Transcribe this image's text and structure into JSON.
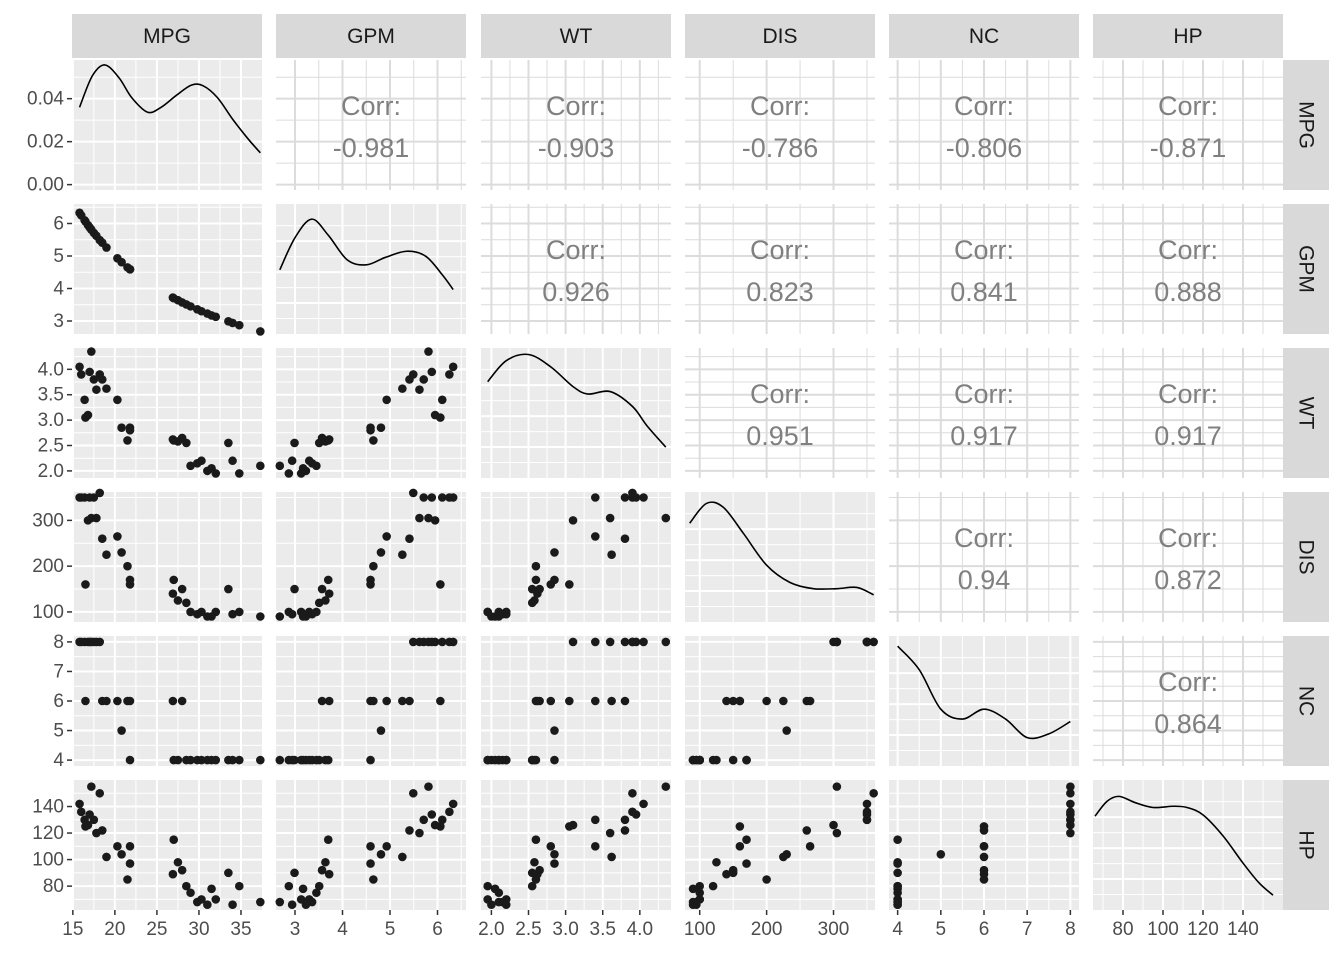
{
  "chart_data": {
    "type": "scatter-matrix",
    "title": "",
    "variables": [
      "MPG",
      "GPM",
      "WT",
      "DIS",
      "NC",
      "HP"
    ],
    "corr_label": "Corr:",
    "correlations": [
      {
        "row": "MPG",
        "col": "GPM",
        "value": "-0.981"
      },
      {
        "row": "MPG",
        "col": "WT",
        "value": "-0.903"
      },
      {
        "row": "MPG",
        "col": "DIS",
        "value": "-0.786"
      },
      {
        "row": "MPG",
        "col": "NC",
        "value": "-0.806"
      },
      {
        "row": "MPG",
        "col": "HP",
        "value": "-0.871"
      },
      {
        "row": "GPM",
        "col": "WT",
        "value": "0.926"
      },
      {
        "row": "GPM",
        "col": "DIS",
        "value": "0.823"
      },
      {
        "row": "GPM",
        "col": "NC",
        "value": "0.841"
      },
      {
        "row": "GPM",
        "col": "HP",
        "value": "0.888"
      },
      {
        "row": "WT",
        "col": "DIS",
        "value": "0.951"
      },
      {
        "row": "WT",
        "col": "NC",
        "value": "0.917"
      },
      {
        "row": "WT",
        "col": "HP",
        "value": "0.917"
      },
      {
        "row": "DIS",
        "col": "NC",
        "value": "0.94"
      },
      {
        "row": "DIS",
        "col": "HP",
        "value": "0.872"
      },
      {
        "row": "NC",
        "col": "HP",
        "value": "0.864"
      }
    ],
    "x_axes": {
      "MPG": {
        "range": [
          14.9,
          37.5
        ],
        "ticks": [
          15,
          20,
          25,
          30,
          35
        ],
        "labels": [
          "15",
          "20",
          "25",
          "30",
          "35"
        ]
      },
      "GPM": {
        "range": [
          2.6,
          6.6
        ],
        "ticks": [
          3,
          4,
          5,
          6
        ],
        "labels": [
          "3",
          "4",
          "5",
          "6"
        ]
      },
      "WT": {
        "range": [
          1.86,
          4.42
        ],
        "ticks": [
          2.0,
          2.5,
          3.0,
          3.5,
          4.0
        ],
        "labels": [
          "2.0",
          "2.5",
          "3.0",
          "3.5",
          "4.0"
        ]
      },
      "DIS": {
        "range": [
          78,
          362
        ],
        "ticks": [
          100,
          200,
          300
        ],
        "labels": [
          "100",
          "200",
          "300"
        ]
      },
      "NC": {
        "range": [
          3.8,
          8.2
        ],
        "ticks": [
          4,
          5,
          6,
          7,
          8
        ],
        "labels": [
          "4",
          "5",
          "6",
          "7",
          "8"
        ]
      },
      "HP": {
        "range": [
          65,
          160
        ],
        "ticks": [
          80,
          100,
          120,
          140
        ],
        "labels": [
          "80",
          "100",
          "120",
          "140"
        ]
      }
    },
    "y_axes": {
      "MPG": {
        "range": [
          -0.0025,
          0.058
        ],
        "ticks": [
          0.0,
          0.02,
          0.04
        ],
        "labels": [
          "0.00",
          "0.02",
          "0.04"
        ]
      },
      "GPM": {
        "range": [
          2.6,
          6.6
        ],
        "ticks": [
          3,
          4,
          5,
          6
        ],
        "labels": [
          "3",
          "4",
          "5",
          "6"
        ]
      },
      "WT": {
        "range": [
          1.86,
          4.42
        ],
        "ticks": [
          2.0,
          2.5,
          3.0,
          3.5,
          4.0
        ],
        "labels": [
          "2.0",
          "2.5",
          "3.0",
          "3.5",
          "4.0"
        ]
      },
      "DIS": {
        "range": [
          78,
          362
        ],
        "ticks": [
          100,
          200,
          300
        ],
        "labels": [
          "100",
          "200",
          "300"
        ]
      },
      "NC": {
        "range": [
          3.8,
          8.2
        ],
        "ticks": [
          4,
          5,
          6,
          7,
          8
        ],
        "labels": [
          "4",
          "5",
          "6",
          "7",
          "8"
        ]
      },
      "HP": {
        "range": [
          62,
          160
        ],
        "ticks": [
          80,
          100,
          120,
          140
        ],
        "labels": [
          "80",
          "100",
          "120",
          "140"
        ]
      }
    },
    "observations": {
      "MPG": [
        15.8,
        16.0,
        16.4,
        16.8,
        17.0,
        17.2,
        17.5,
        17.8,
        18.2,
        18.5,
        19.0,
        20.3,
        20.8,
        21.5,
        21.8,
        26.9,
        27.0,
        27.5,
        28.0,
        28.5,
        29.0,
        29.8,
        30.3,
        31.0,
        31.5,
        32.0,
        33.5,
        34.0,
        34.8,
        37.3,
        16.5,
        21.8
      ],
      "GPM": [
        6.33,
        6.25,
        6.1,
        5.95,
        5.88,
        5.81,
        5.71,
        5.62,
        5.49,
        5.41,
        5.26,
        4.93,
        4.81,
        4.65,
        4.59,
        3.72,
        3.7,
        3.64,
        3.57,
        3.51,
        3.45,
        3.36,
        3.3,
        3.23,
        3.17,
        3.13,
        2.99,
        2.94,
        2.87,
        2.68,
        6.06,
        4.59
      ],
      "WT": [
        4.05,
        3.9,
        3.4,
        3.1,
        3.95,
        4.35,
        3.8,
        3.6,
        3.9,
        3.8,
        3.62,
        3.4,
        2.85,
        2.6,
        2.85,
        2.62,
        2.6,
        2.58,
        2.65,
        2.55,
        2.1,
        2.15,
        2.2,
        2.0,
        2.05,
        1.95,
        2.55,
        2.2,
        1.95,
        2.1,
        3.05,
        2.8
      ],
      "DIS": [
        350,
        350,
        350,
        300,
        350,
        305,
        350,
        305,
        360,
        260,
        225,
        265,
        230,
        200,
        170,
        140,
        170,
        125,
        150,
        120,
        100,
        95,
        100,
        90,
        90,
        100,
        150,
        95,
        100,
        90,
        160,
        160
      ],
      "NC": [
        8,
        8,
        8,
        8,
        8,
        8,
        8,
        8,
        8,
        6,
        6,
        6,
        5,
        6,
        4,
        6,
        4,
        4,
        6,
        4,
        4,
        4,
        4,
        4,
        4,
        4,
        4,
        4,
        4,
        4,
        6,
        6
      ],
      "HP": [
        142,
        136,
        130,
        126,
        134,
        155,
        130,
        120,
        150,
        122,
        102,
        110,
        104,
        85,
        97,
        89,
        115,
        98,
        92,
        80,
        75,
        68,
        70,
        66,
        78,
        70,
        90,
        66,
        80,
        68,
        125,
        110
      ]
    },
    "densities": {
      "MPG": [
        {
          "x": 15.8,
          "y": 0.036
        },
        {
          "x": 17.3,
          "y": 0.0505
        },
        {
          "x": 18.8,
          "y": 0.0557
        },
        {
          "x": 20.5,
          "y": 0.0497
        },
        {
          "x": 22.0,
          "y": 0.0405
        },
        {
          "x": 23.9,
          "y": 0.0337
        },
        {
          "x": 25.5,
          "y": 0.036
        },
        {
          "x": 27.3,
          "y": 0.0415
        },
        {
          "x": 29.1,
          "y": 0.0463
        },
        {
          "x": 30.5,
          "y": 0.046
        },
        {
          "x": 32.2,
          "y": 0.0405
        },
        {
          "x": 34.0,
          "y": 0.0305
        },
        {
          "x": 35.8,
          "y": 0.0215
        },
        {
          "x": 37.3,
          "y": 0.0148
        }
      ],
      "GPM": [
        {
          "norm": 0.014,
          "x": 2.68
        },
        {
          "x": 2.68,
          "d": 0.52
        },
        {
          "x": 3.0,
          "d": 0.78
        },
        {
          "x": 3.35,
          "d": 0.93
        },
        {
          "x": 3.7,
          "d": 0.8
        },
        {
          "x": 4.1,
          "d": 0.6
        },
        {
          "x": 4.5,
          "d": 0.56
        },
        {
          "x": 4.9,
          "d": 0.62
        },
        {
          "x": 5.35,
          "d": 0.67
        },
        {
          "x": 5.75,
          "d": 0.63
        },
        {
          "x": 6.1,
          "d": 0.48
        },
        {
          "x": 6.33,
          "d": 0.36
        }
      ],
      "WT": [
        {
          "x": 1.95,
          "d": 0.78
        },
        {
          "x": 2.2,
          "d": 0.95
        },
        {
          "x": 2.5,
          "d": 1.0
        },
        {
          "x": 2.8,
          "d": 0.9
        },
        {
          "x": 3.1,
          "d": 0.74
        },
        {
          "x": 3.3,
          "d": 0.68
        },
        {
          "x": 3.6,
          "d": 0.7
        },
        {
          "x": 3.9,
          "d": 0.58
        },
        {
          "x": 4.1,
          "d": 0.42
        },
        {
          "x": 4.35,
          "d": 0.25
        }
      ],
      "DIS": [
        {
          "x": 85,
          "d": 0.8
        },
        {
          "x": 110,
          "d": 0.96
        },
        {
          "x": 135,
          "d": 0.93
        },
        {
          "x": 165,
          "d": 0.72
        },
        {
          "x": 200,
          "d": 0.46
        },
        {
          "x": 235,
          "d": 0.32
        },
        {
          "x": 270,
          "d": 0.27
        },
        {
          "x": 305,
          "d": 0.27
        },
        {
          "x": 335,
          "d": 0.28
        },
        {
          "x": 360,
          "d": 0.22
        }
      ],
      "NC": [
        {
          "x": 4.0,
          "d": 0.97
        },
        {
          "x": 4.5,
          "d": 0.78
        },
        {
          "x": 5.0,
          "d": 0.46
        },
        {
          "x": 5.5,
          "d": 0.38
        },
        {
          "x": 6.0,
          "d": 0.46
        },
        {
          "x": 6.5,
          "d": 0.38
        },
        {
          "x": 7.0,
          "d": 0.23
        },
        {
          "x": 7.5,
          "d": 0.26
        },
        {
          "x": 8.0,
          "d": 0.36
        }
      ],
      "HP": [
        {
          "x": 66,
          "d": 0.76
        },
        {
          "x": 72,
          "d": 0.88
        },
        {
          "x": 78,
          "d": 0.92
        },
        {
          "x": 86,
          "d": 0.87
        },
        {
          "x": 95,
          "d": 0.83
        },
        {
          "x": 105,
          "d": 0.84
        },
        {
          "x": 112,
          "d": 0.83
        },
        {
          "x": 120,
          "d": 0.77
        },
        {
          "x": 130,
          "d": 0.6
        },
        {
          "x": 140,
          "d": 0.38
        },
        {
          "x": 148,
          "d": 0.22
        },
        {
          "x": 155,
          "d": 0.12
        }
      ]
    },
    "grid": true,
    "point_color": "#1a1a1a",
    "panel_background": "#ebebeb",
    "strip_background": "#d9d9d9",
    "grid_color": "#ffffff",
    "grid_color_upper": "#dcdcdc",
    "corr_text_color": "#808080",
    "tick_text_color": "#4d4d4d"
  }
}
